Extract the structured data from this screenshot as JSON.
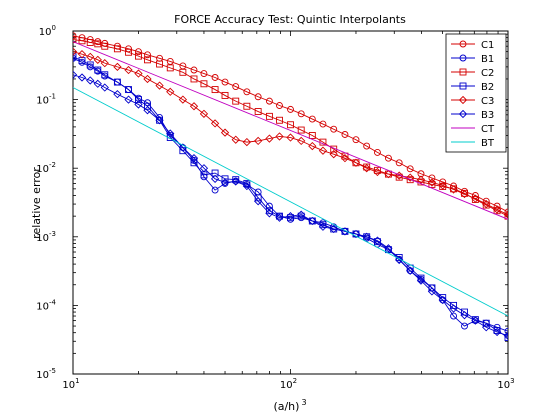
{
  "chart_data": {
    "type": "line",
    "title": "FORCE Accuracy Test: Quintic Interpolants",
    "xlabel": "(a/h)",
    "xlabel_superscript": "3",
    "ylabel": "relative error",
    "xscale": "log",
    "yscale": "log",
    "xlim": [
      10,
      1000
    ],
    "ylim": [
      1e-05,
      1
    ],
    "x_ticks": [
      {
        "value": 10,
        "base": "10",
        "exp": "1"
      },
      {
        "value": 100,
        "base": "10",
        "exp": "2"
      },
      {
        "value": 1000,
        "base": "10",
        "exp": "3"
      }
    ],
    "y_ticks": [
      {
        "value": 1e-05,
        "base": "10",
        "exp": "-5"
      },
      {
        "value": 0.0001,
        "base": "10",
        "exp": "-4"
      },
      {
        "value": 0.001,
        "base": "10",
        "exp": "-3"
      },
      {
        "value": 0.01,
        "base": "10",
        "exp": "-2"
      },
      {
        "value": 0.1,
        "base": "10",
        "exp": "-1"
      },
      {
        "value": 1,
        "base": "10",
        "exp": "0"
      }
    ],
    "grid": false,
    "legend_position": "top-right",
    "series": [
      {
        "name": "C1",
        "color": "#d40000",
        "marker": "circle",
        "points": [
          [
            10,
            0.85
          ],
          [
            11,
            0.8
          ],
          [
            12,
            0.75
          ],
          [
            13,
            0.7
          ],
          [
            14,
            0.66
          ],
          [
            16,
            0.6
          ],
          [
            18,
            0.55
          ],
          [
            20,
            0.5
          ],
          [
            22,
            0.45
          ],
          [
            25,
            0.4
          ],
          [
            28,
            0.36
          ],
          [
            32,
            0.31
          ],
          [
            36,
            0.27
          ],
          [
            40,
            0.24
          ],
          [
            45,
            0.21
          ],
          [
            50,
            0.18
          ],
          [
            56,
            0.155
          ],
          [
            63,
            0.13
          ],
          [
            71,
            0.11
          ],
          [
            80,
            0.095
          ],
          [
            89,
            0.082
          ],
          [
            100,
            0.072
          ],
          [
            112,
            0.062
          ],
          [
            126,
            0.052
          ],
          [
            141,
            0.044
          ],
          [
            158,
            0.037
          ],
          [
            178,
            0.031
          ],
          [
            200,
            0.026
          ],
          [
            224,
            0.021
          ],
          [
            251,
            0.017
          ],
          [
            282,
            0.014
          ],
          [
            316,
            0.012
          ],
          [
            355,
            0.0098
          ],
          [
            398,
            0.0083
          ],
          [
            447,
            0.0072
          ],
          [
            501,
            0.0063
          ],
          [
            562,
            0.0055
          ],
          [
            631,
            0.0046
          ],
          [
            708,
            0.004
          ],
          [
            794,
            0.0033
          ],
          [
            891,
            0.0028
          ],
          [
            1000,
            0.0023
          ]
        ]
      },
      {
        "name": "B1",
        "color": "#0000cc",
        "marker": "circle",
        "points": [
          [
            10,
            0.4
          ],
          [
            11,
            0.35
          ],
          [
            12,
            0.3
          ],
          [
            13,
            0.26
          ],
          [
            14,
            0.22
          ],
          [
            16,
            0.18
          ],
          [
            18,
            0.14
          ],
          [
            20,
            0.105
          ],
          [
            22,
            0.09
          ],
          [
            25,
            0.055
          ],
          [
            28,
            0.03
          ],
          [
            32,
            0.02
          ],
          [
            36,
            0.013
          ],
          [
            40,
            0.0075
          ],
          [
            45,
            0.0048
          ],
          [
            50,
            0.006
          ],
          [
            56,
            0.0065
          ],
          [
            63,
            0.0058
          ],
          [
            71,
            0.0045
          ],
          [
            80,
            0.0028
          ],
          [
            89,
            0.002
          ],
          [
            100,
            0.0018
          ],
          [
            112,
            0.0019
          ],
          [
            126,
            0.0017
          ],
          [
            141,
            0.0016
          ],
          [
            158,
            0.0014
          ],
          [
            178,
            0.0012
          ],
          [
            200,
            0.0011
          ],
          [
            224,
            0.00095
          ],
          [
            251,
            0.00078
          ],
          [
            282,
            0.00065
          ],
          [
            316,
            0.00047
          ],
          [
            355,
            0.00032
          ],
          [
            398,
            0.00024
          ],
          [
            447,
            0.00018
          ],
          [
            501,
            0.00012
          ],
          [
            562,
            7e-05
          ],
          [
            631,
            5e-05
          ],
          [
            708,
            6e-05
          ],
          [
            794,
            5.5e-05
          ],
          [
            891,
            4.8e-05
          ],
          [
            1000,
            4.2e-05
          ]
        ]
      },
      {
        "name": "C2",
        "color": "#d40000",
        "marker": "square",
        "points": [
          [
            10,
            0.75
          ],
          [
            11,
            0.72
          ],
          [
            12,
            0.68
          ],
          [
            13,
            0.65
          ],
          [
            14,
            0.6
          ],
          [
            16,
            0.55
          ],
          [
            18,
            0.49
          ],
          [
            20,
            0.43
          ],
          [
            22,
            0.38
          ],
          [
            25,
            0.33
          ],
          [
            28,
            0.29
          ],
          [
            32,
            0.25
          ],
          [
            36,
            0.2
          ],
          [
            40,
            0.17
          ],
          [
            45,
            0.14
          ],
          [
            50,
            0.115
          ],
          [
            56,
            0.095
          ],
          [
            63,
            0.08
          ],
          [
            71,
            0.067
          ],
          [
            80,
            0.057
          ],
          [
            89,
            0.05
          ],
          [
            100,
            0.043
          ],
          [
            112,
            0.036
          ],
          [
            126,
            0.03
          ],
          [
            141,
            0.024
          ],
          [
            158,
            0.019
          ],
          [
            178,
            0.015
          ],
          [
            200,
            0.012
          ],
          [
            224,
            0.0104
          ],
          [
            251,
            0.0093
          ],
          [
            282,
            0.0082
          ],
          [
            316,
            0.0074
          ],
          [
            355,
            0.0068
          ],
          [
            398,
            0.0063
          ],
          [
            447,
            0.0058
          ],
          [
            501,
            0.0054
          ],
          [
            562,
            0.005
          ],
          [
            631,
            0.0043
          ],
          [
            708,
            0.0035
          ],
          [
            794,
            0.0029
          ],
          [
            891,
            0.0024
          ],
          [
            1000,
            0.002
          ]
        ]
      },
      {
        "name": "B2",
        "color": "#0000cc",
        "marker": "square",
        "points": [
          [
            10,
            0.42
          ],
          [
            11,
            0.37
          ],
          [
            12,
            0.32
          ],
          [
            13,
            0.27
          ],
          [
            14,
            0.23
          ],
          [
            16,
            0.18
          ],
          [
            18,
            0.14
          ],
          [
            20,
            0.1
          ],
          [
            22,
            0.08
          ],
          [
            25,
            0.05
          ],
          [
            28,
            0.028
          ],
          [
            32,
            0.018
          ],
          [
            36,
            0.012
          ],
          [
            40,
            0.008
          ],
          [
            45,
            0.0085
          ],
          [
            50,
            0.007
          ],
          [
            56,
            0.0068
          ],
          [
            63,
            0.006
          ],
          [
            71,
            0.0037
          ],
          [
            80,
            0.0024
          ],
          [
            89,
            0.002
          ],
          [
            100,
            0.0019
          ],
          [
            112,
            0.002
          ],
          [
            126,
            0.0017
          ],
          [
            141,
            0.0015
          ],
          [
            158,
            0.0013
          ],
          [
            178,
            0.0012
          ],
          [
            200,
            0.0011
          ],
          [
            224,
            0.001
          ],
          [
            251,
            0.00085
          ],
          [
            282,
            0.00065
          ],
          [
            316,
            0.0005
          ],
          [
            355,
            0.00035
          ],
          [
            398,
            0.00025
          ],
          [
            447,
            0.00018
          ],
          [
            501,
            0.00013
          ],
          [
            562,
            0.0001
          ],
          [
            631,
            8e-05
          ],
          [
            708,
            6.2e-05
          ],
          [
            794,
            5.5e-05
          ],
          [
            891,
            4.3e-05
          ],
          [
            1000,
            3.4e-05
          ]
        ]
      },
      {
        "name": "C3",
        "color": "#d40000",
        "marker": "diamond",
        "points": [
          [
            10,
            0.5
          ],
          [
            11,
            0.46
          ],
          [
            12,
            0.42
          ],
          [
            13,
            0.38
          ],
          [
            14,
            0.34
          ],
          [
            16,
            0.3
          ],
          [
            18,
            0.27
          ],
          [
            20,
            0.24
          ],
          [
            22,
            0.2
          ],
          [
            25,
            0.16
          ],
          [
            28,
            0.13
          ],
          [
            32,
            0.1
          ],
          [
            36,
            0.08
          ],
          [
            40,
            0.062
          ],
          [
            45,
            0.045
          ],
          [
            50,
            0.033
          ],
          [
            56,
            0.026
          ],
          [
            63,
            0.024
          ],
          [
            71,
            0.025
          ],
          [
            80,
            0.027
          ],
          [
            89,
            0.029
          ],
          [
            100,
            0.028
          ],
          [
            112,
            0.025
          ],
          [
            126,
            0.021
          ],
          [
            141,
            0.018
          ],
          [
            158,
            0.016
          ],
          [
            178,
            0.014
          ],
          [
            200,
            0.012
          ],
          [
            224,
            0.01
          ],
          [
            251,
            0.0088
          ],
          [
            282,
            0.0082
          ],
          [
            316,
            0.0078
          ],
          [
            355,
            0.0073
          ],
          [
            398,
            0.0068
          ],
          [
            447,
            0.0062
          ],
          [
            501,
            0.0056
          ],
          [
            562,
            0.0049
          ],
          [
            631,
            0.0042
          ],
          [
            708,
            0.0036
          ],
          [
            794,
            0.003
          ],
          [
            891,
            0.0025
          ],
          [
            1000,
            0.0021
          ]
        ]
      },
      {
        "name": "B3",
        "color": "#0000cc",
        "marker": "diamond",
        "points": [
          [
            10,
            0.23
          ],
          [
            11,
            0.21
          ],
          [
            12,
            0.19
          ],
          [
            13,
            0.17
          ],
          [
            14,
            0.15
          ],
          [
            16,
            0.12
          ],
          [
            18,
            0.1
          ],
          [
            20,
            0.085
          ],
          [
            22,
            0.07
          ],
          [
            25,
            0.05
          ],
          [
            28,
            0.032
          ],
          [
            32,
            0.02
          ],
          [
            36,
            0.014
          ],
          [
            40,
            0.01
          ],
          [
            45,
            0.007
          ],
          [
            50,
            0.0062
          ],
          [
            56,
            0.0064
          ],
          [
            63,
            0.0055
          ],
          [
            71,
            0.0033
          ],
          [
            80,
            0.0022
          ],
          [
            89,
            0.0019
          ],
          [
            100,
            0.002
          ],
          [
            112,
            0.0021
          ],
          [
            126,
            0.0017
          ],
          [
            141,
            0.0014
          ],
          [
            158,
            0.0013
          ],
          [
            178,
            0.0012
          ],
          [
            200,
            0.0011
          ],
          [
            224,
            0.001
          ],
          [
            251,
            0.00088
          ],
          [
            282,
            0.00068
          ],
          [
            316,
            0.00046
          ],
          [
            355,
            0.00032
          ],
          [
            398,
            0.00023
          ],
          [
            447,
            0.00016
          ],
          [
            501,
            0.00012
          ],
          [
            562,
            9e-05
          ],
          [
            631,
            7.2e-05
          ],
          [
            708,
            6e-05
          ],
          [
            794,
            4.8e-05
          ],
          [
            891,
            4.1e-05
          ],
          [
            1000,
            3.6e-05
          ]
        ]
      },
      {
        "name": "CT",
        "color": "#c000c0",
        "marker": "none",
        "points": [
          [
            10,
            0.7
          ],
          [
            1000,
            0.0018
          ]
        ]
      },
      {
        "name": "BT",
        "color": "#00cccc",
        "marker": "none",
        "points": [
          [
            10,
            0.15
          ],
          [
            1000,
            7e-05
          ]
        ]
      }
    ]
  }
}
